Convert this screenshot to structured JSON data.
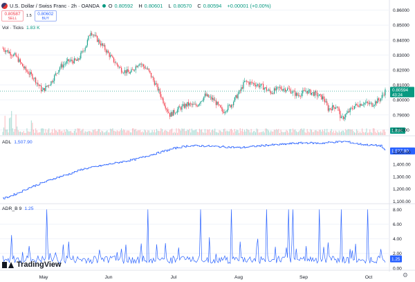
{
  "header": {
    "symbol_title": "U.S. Dollar / Swiss Franc · 2h · OANDA",
    "ohlc": [
      {
        "key": "O",
        "value": "0.80592"
      },
      {
        "key": "H",
        "value": "0.80601"
      },
      {
        "key": "L",
        "value": "0.80570"
      },
      {
        "key": "C",
        "value": "0.80594"
      }
    ],
    "change": "+0.00001 (+0.00%)",
    "status_color": "#089981"
  },
  "trade": {
    "sell_price": "0.80587",
    "sell_label": "SELL",
    "spread": "1.5",
    "buy_price": "0.80602",
    "buy_label": "BUY"
  },
  "indicators": {
    "volume_name": "Vol · Ticks",
    "volume_value": "1.83 K",
    "adl_name": "ADL",
    "adl_value": "1,507.90",
    "adr_name": "ADR_B 9",
    "adr_value": "1.25"
  },
  "badges": {
    "price": "0.80594",
    "countdown": "43:24",
    "volume": "1.83K",
    "adl": "1,507.90",
    "adr": "1.25"
  },
  "logo": "TradingView",
  "chart_data": [
    {
      "type": "candlestick",
      "pane": "price",
      "ylim": [
        0.776,
        0.864
      ],
      "yticks": [
        0.78,
        0.79,
        0.8,
        0.81,
        0.82,
        0.83,
        0.84,
        0.85,
        0.86
      ],
      "ytick_labels": [
        "0.78000",
        "0.79000",
        "0.80000",
        "0.81000",
        "0.82000",
        "0.83000",
        "0.84000",
        "0.85000",
        "0.86000"
      ],
      "x_labels": [
        "May",
        "Jun",
        "Jul",
        "Aug",
        "Sep",
        "Oct"
      ],
      "approx_close_path": [
        [
          0,
          0.8345
        ],
        [
          3,
          0.829
        ],
        [
          5,
          0.8205
        ],
        [
          7,
          0.815
        ],
        [
          9,
          0.806
        ],
        [
          11,
          0.812
        ],
        [
          13,
          0.822
        ],
        [
          15,
          0.826
        ],
        [
          17,
          0.826
        ],
        [
          19,
          0.837
        ],
        [
          20,
          0.846
        ],
        [
          21,
          0.842
        ],
        [
          23,
          0.835
        ],
        [
          25,
          0.827
        ],
        [
          27,
          0.82
        ],
        [
          29,
          0.818
        ],
        [
          31,
          0.825
        ],
        [
          33,
          0.82
        ],
        [
          35,
          0.809
        ],
        [
          37,
          0.796
        ],
        [
          38,
          0.79
        ],
        [
          40,
          0.794
        ],
        [
          42,
          0.797
        ],
        [
          44,
          0.796
        ],
        [
          46,
          0.803
        ],
        [
          48,
          0.8
        ],
        [
          50,
          0.792
        ],
        [
          52,
          0.797
        ],
        [
          54,
          0.806
        ],
        [
          55,
          0.812
        ],
        [
          57,
          0.811
        ],
        [
          59,
          0.809
        ],
        [
          61,
          0.805
        ],
        [
          63,
          0.808
        ],
        [
          65,
          0.807
        ],
        [
          67,
          0.803
        ],
        [
          69,
          0.806
        ],
        [
          71,
          0.804
        ],
        [
          73,
          0.801
        ],
        [
          74,
          0.794
        ],
        [
          76,
          0.796
        ],
        [
          77,
          0.787
        ],
        [
          78,
          0.79
        ],
        [
          80,
          0.796
        ],
        [
          82,
          0.798
        ],
        [
          84,
          0.797
        ],
        [
          86,
          0.801
        ],
        [
          87,
          0.806
        ]
      ],
      "last_price": 0.80594
    },
    {
      "type": "bar",
      "pane": "volume",
      "name": "Vol · Ticks",
      "last_value": 1830
    },
    {
      "type": "line",
      "pane": "adl",
      "name": "ADL",
      "ylim": [
        1080,
        1620
      ],
      "yticks": [
        1100,
        1200,
        1300,
        1400,
        1500
      ],
      "ytick_labels": [
        "1,100.00",
        "1,200.00",
        "1,300.00",
        "1,400.00",
        "1,500.00"
      ],
      "approx_path": [
        [
          0,
          1120
        ],
        [
          3,
          1160
        ],
        [
          6,
          1210
        ],
        [
          9,
          1250
        ],
        [
          12,
          1290
        ],
        [
          15,
          1320
        ],
        [
          18,
          1360
        ],
        [
          21,
          1380
        ],
        [
          24,
          1400
        ],
        [
          27,
          1420
        ],
        [
          30,
          1440
        ],
        [
          33,
          1470
        ],
        [
          36,
          1500
        ],
        [
          39,
          1530
        ],
        [
          42,
          1550
        ],
        [
          45,
          1550
        ],
        [
          48,
          1545
        ],
        [
          51,
          1540
        ],
        [
          54,
          1535
        ],
        [
          57,
          1545
        ],
        [
          60,
          1555
        ],
        [
          63,
          1560
        ],
        [
          66,
          1570
        ],
        [
          69,
          1575
        ],
        [
          72,
          1570
        ],
        [
          75,
          1580
        ],
        [
          78,
          1585
        ],
        [
          80,
          1570
        ],
        [
          82,
          1560
        ],
        [
          84,
          1555
        ],
        [
          86,
          1550
        ],
        [
          87,
          1507.9
        ]
      ],
      "last_value": 1507.9
    },
    {
      "type": "line",
      "pane": "adr",
      "name": "ADR_B 9",
      "ylim": [
        -0.3,
        8.6
      ],
      "yticks": [
        0,
        1,
        2,
        4,
        6,
        8
      ],
      "ytick_labels": [
        "0.00",
        "1.00",
        "2.00",
        "4.00",
        "6.00",
        "8.00"
      ],
      "approx_spikes": [
        [
          2,
          4.5
        ],
        [
          6,
          3.0
        ],
        [
          10,
          8.0
        ],
        [
          15,
          3.6
        ],
        [
          22,
          2.5
        ],
        [
          28,
          3.2
        ],
        [
          33,
          8.0
        ],
        [
          37,
          3.4
        ],
        [
          40,
          2.8
        ],
        [
          45,
          8.0
        ],
        [
          47,
          4.2
        ],
        [
          52,
          8.0
        ],
        [
          54,
          3.6
        ],
        [
          58,
          4.0
        ],
        [
          60,
          8.0
        ],
        [
          62,
          2.9
        ],
        [
          65,
          8.0
        ],
        [
          66,
          8.0
        ],
        [
          69,
          3.0
        ],
        [
          72,
          8.0
        ],
        [
          74,
          3.5
        ],
        [
          77,
          8.0
        ],
        [
          79,
          2.6
        ],
        [
          83,
          8.0
        ],
        [
          86,
          2.6
        ]
      ],
      "last_value": 1.25
    }
  ]
}
